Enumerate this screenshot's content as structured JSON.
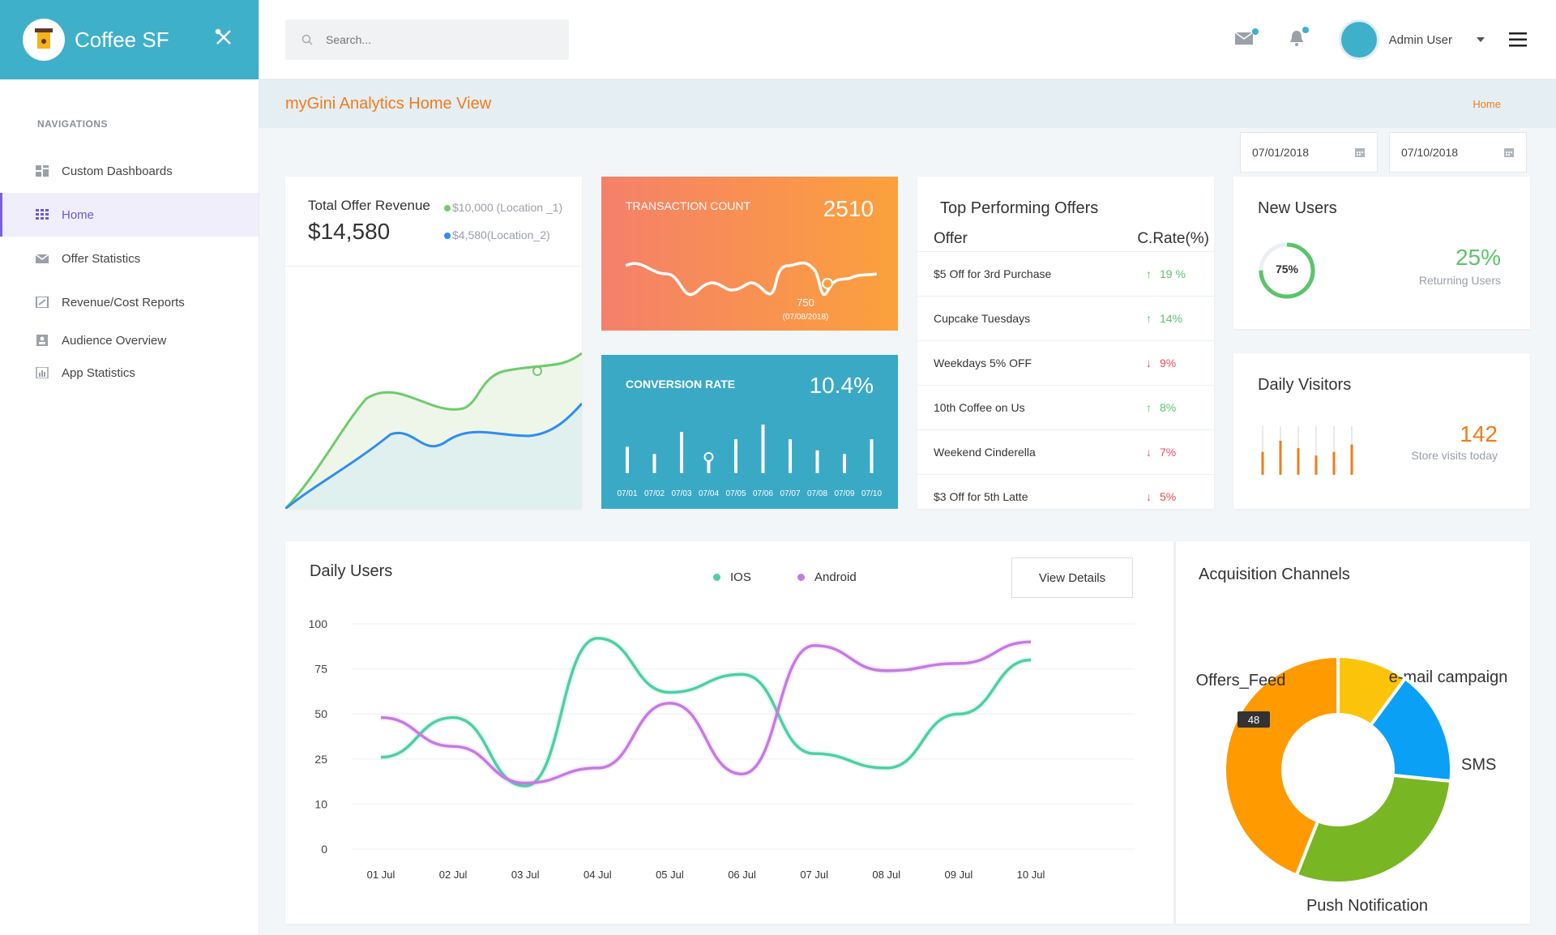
{
  "brand": {
    "name": "Coffee SF"
  },
  "search": {
    "placeholder": "Search..."
  },
  "user": {
    "name": "Admin User"
  },
  "nav": {
    "heading": "NAVIGATIONS",
    "items": [
      {
        "label": "Custom Dashboards",
        "icon": "dashboard-icon"
      },
      {
        "label": "Home",
        "icon": "grid-icon",
        "active": true
      },
      {
        "label": "Offer Statistics",
        "icon": "envelope-icon"
      },
      {
        "label": "Revenue/Cost Reports",
        "icon": "report-icon"
      },
      {
        "label": "Audience Overview",
        "icon": "person-icon"
      },
      {
        "label": "App Statistics",
        "icon": "bar-chart-icon"
      }
    ]
  },
  "page": {
    "title": "myGini Analytics Home View",
    "breadcrumb": "Home"
  },
  "dates": {
    "start": "07/01/2018",
    "end": "07/10/2018"
  },
  "revenue": {
    "title": "Total Offer Revenue",
    "value": "$14,580",
    "legend": [
      "$10,000 (Location _1)",
      "$4,580(Location_2)"
    ],
    "colors": [
      "#6dcc6b",
      "#2f8cf0"
    ]
  },
  "transaction": {
    "label": "TRANSACTION COUNT",
    "value": "2510",
    "marker_value": "750",
    "marker_date": "(07/08/2018)"
  },
  "conversion": {
    "label": "CONVERSION RATE",
    "value": "10.4%",
    "days": [
      "07/01",
      "07/02",
      "07/03",
      "07/04",
      "07/05",
      "07/06",
      "07/07",
      "07/08",
      "07/09",
      "07/10"
    ]
  },
  "offers": {
    "title": "Top Performing Offers",
    "col_offer": "Offer",
    "col_rate": "C.Rate(%)",
    "rows": [
      {
        "name": "$5 Off for 3rd  Purchase",
        "rate": "19 %",
        "dir": "up"
      },
      {
        "name": "Cupcake Tuesdays",
        "rate": "14%",
        "dir": "up"
      },
      {
        "name": "Weekdays 5% OFF",
        "rate": "9%",
        "dir": "down"
      },
      {
        "name": "10th Coffee on Us",
        "rate": "8%",
        "dir": "up"
      },
      {
        "name": "Weekend Cinderella",
        "rate": "7%",
        "dir": "down"
      },
      {
        "name": "$3 Off for 5th Latte",
        "rate": "5%",
        "dir": "down"
      }
    ]
  },
  "new_users": {
    "title": "New Users",
    "percent": "75%",
    "ratio": 0.75,
    "returning": "25%",
    "returning_label": "Returning Users"
  },
  "daily_visitors": {
    "title": "Daily Visitors",
    "value": "142",
    "label": "Store visits today"
  },
  "daily_users": {
    "title": "Daily Users",
    "view_details": "View Details"
  },
  "acquisition": {
    "title": "Acquisition Channels"
  },
  "chart_data": [
    {
      "type": "line",
      "title": "Daily Users",
      "categories": [
        "01 Jul",
        "02 Jul",
        "03 Jul",
        "04 Jul",
        "05 Jul",
        "06 Jul",
        "07 Jul",
        "08 Jul",
        "09 Jul",
        "10 Jul"
      ],
      "y_ticks": [
        0,
        10,
        25,
        50,
        75,
        100
      ],
      "series": [
        {
          "name": "IOS",
          "color": "#4fcfa4",
          "values": [
            26,
            48,
            16,
            92,
            62,
            72,
            28,
            22,
            50,
            80
          ]
        },
        {
          "name": "Android",
          "color": "#c57be3",
          "values": [
            48,
            32,
            17,
            22,
            56,
            20,
            88,
            74,
            78,
            90
          ]
        }
      ],
      "legend": "top",
      "grid": true
    },
    {
      "type": "pie",
      "title": "Acquisition Channels",
      "slices": [
        {
          "label": "e-mail campaign",
          "value": 11,
          "color": "#fcc30b"
        },
        {
          "label": "SMS",
          "value": 18,
          "color": "#0aa0f5"
        },
        {
          "label": "Push Notification",
          "value": 32,
          "color": "#78b624"
        },
        {
          "label": "Offers_Feed",
          "value": 48,
          "color": "#ff9a00"
        }
      ],
      "annotation": "48"
    },
    {
      "type": "bar",
      "title": "Conversion Rate",
      "categories": [
        "07/01",
        "07/02",
        "07/03",
        "07/04",
        "07/05",
        "07/06",
        "07/07",
        "07/08",
        "07/09",
        "07/10"
      ],
      "values": [
        5,
        3,
        9,
        2,
        7,
        11,
        7,
        4,
        3,
        7
      ]
    },
    {
      "type": "bar",
      "title": "Daily Visitors",
      "values": [
        4,
        7,
        5,
        3,
        4,
        6
      ]
    }
  ]
}
